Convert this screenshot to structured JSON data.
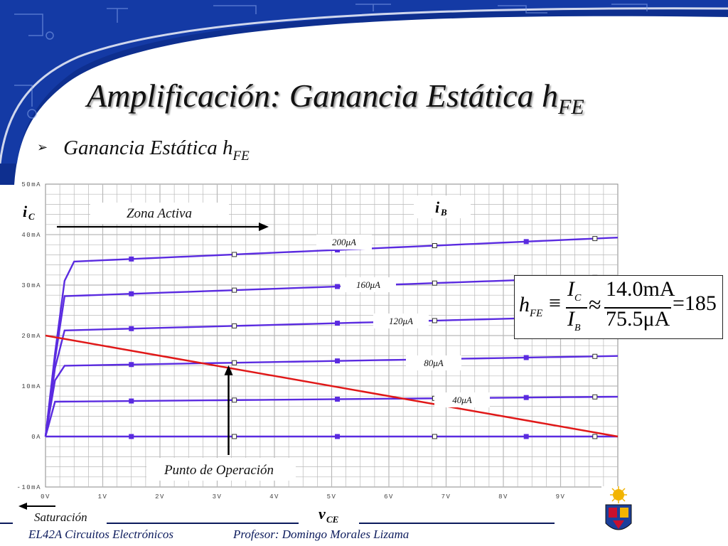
{
  "slide": {
    "title_main": "Amplificación: Ganancia Estática h",
    "title_sub": "FE",
    "bullet_main": "Ganancia Estática h",
    "bullet_sub": "FE",
    "bullet_marker": "➢"
  },
  "footer": {
    "course": "EL42A Circuitos Electrónicos",
    "professor": "Profesor: Domingo Morales Lizama"
  },
  "colors": {
    "header_blue": "#0e2f8f",
    "curve": "#5a2be0",
    "load_line": "#e01818",
    "grid": "#b9b9b9"
  },
  "formula": {
    "lhs": "h",
    "lhs_sub": "FE",
    "equiv": "≡",
    "num_sym": "I",
    "num_sub": "C",
    "den_sym": "I",
    "den_sub": "B",
    "approx": "≈",
    "num_val": "14.0mA",
    "den_val": "75.5μA",
    "result": "=185"
  },
  "chart_data": {
    "type": "line",
    "x_ticks": [
      "0V",
      "1V",
      "2V",
      "3V",
      "4V",
      "5V",
      "6V",
      "7V",
      "8V",
      "9V"
    ],
    "y_ticks": [
      "50mA",
      "40mA",
      "30mA",
      "20mA",
      "10mA",
      "0A",
      "-10mA"
    ],
    "xlim": [
      0,
      10
    ],
    "ylim": [
      -10,
      50
    ],
    "x_axis_label": "v",
    "x_axis_label_sub": "CE",
    "y_axis_label": "i",
    "y_axis_label_sub": "C",
    "ib_label": "i",
    "ib_label_sub": "B",
    "region_label": "Zona Activa",
    "operation_point_label": "Punto de Operación",
    "saturation_label": "Saturación",
    "series": [
      {
        "name": "200μA",
        "ic_sat": 34.6,
        "slope": 0.5
      },
      {
        "name": "160μA",
        "ic_sat": 27.8,
        "slope": 0.4
      },
      {
        "name": "120μA",
        "ic_sat": 21.0,
        "slope": 0.3
      },
      {
        "name": "80μA",
        "ic_sat": 14.0,
        "slope": 0.2
      },
      {
        "name": "40μA",
        "ic_sat": 6.9,
        "slope": 0.1
      },
      {
        "name": "",
        "ic_sat": 0.0,
        "slope": 0.0
      }
    ],
    "load_line": {
      "x": [
        0,
        10
      ],
      "y": [
        20,
        0
      ]
    },
    "operation_point": {
      "x": 3.0,
      "y": 14.4
    }
  }
}
